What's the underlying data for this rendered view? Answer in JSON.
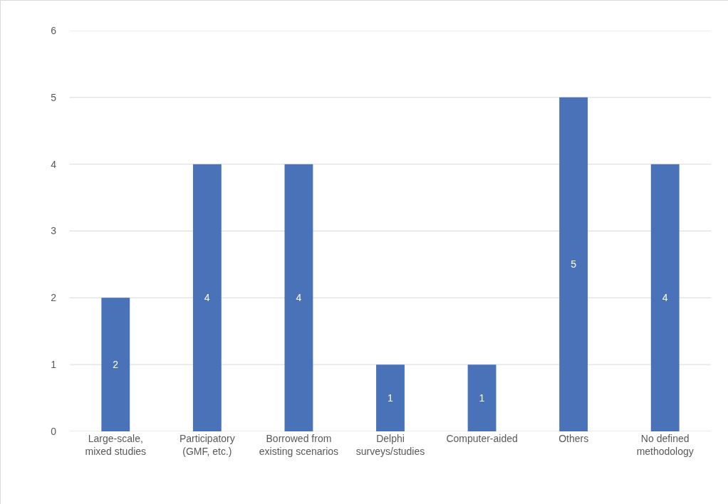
{
  "chart_data": {
    "type": "bar",
    "categories": [
      "Large-scale, mixed studies",
      "Participatory (GMF, etc.)",
      "Borrowed from existing scenarios",
      "Delphi surveys/studies",
      "Computer-aided",
      "Others",
      "No defined methodology"
    ],
    "values": [
      2,
      4,
      4,
      1,
      1,
      5,
      4
    ],
    "color": "#4a72b8",
    "ylim": [
      0,
      6
    ],
    "yticks": [
      0,
      1,
      2,
      3,
      4,
      5,
      6
    ],
    "grid": "y",
    "data_labels": true
  }
}
